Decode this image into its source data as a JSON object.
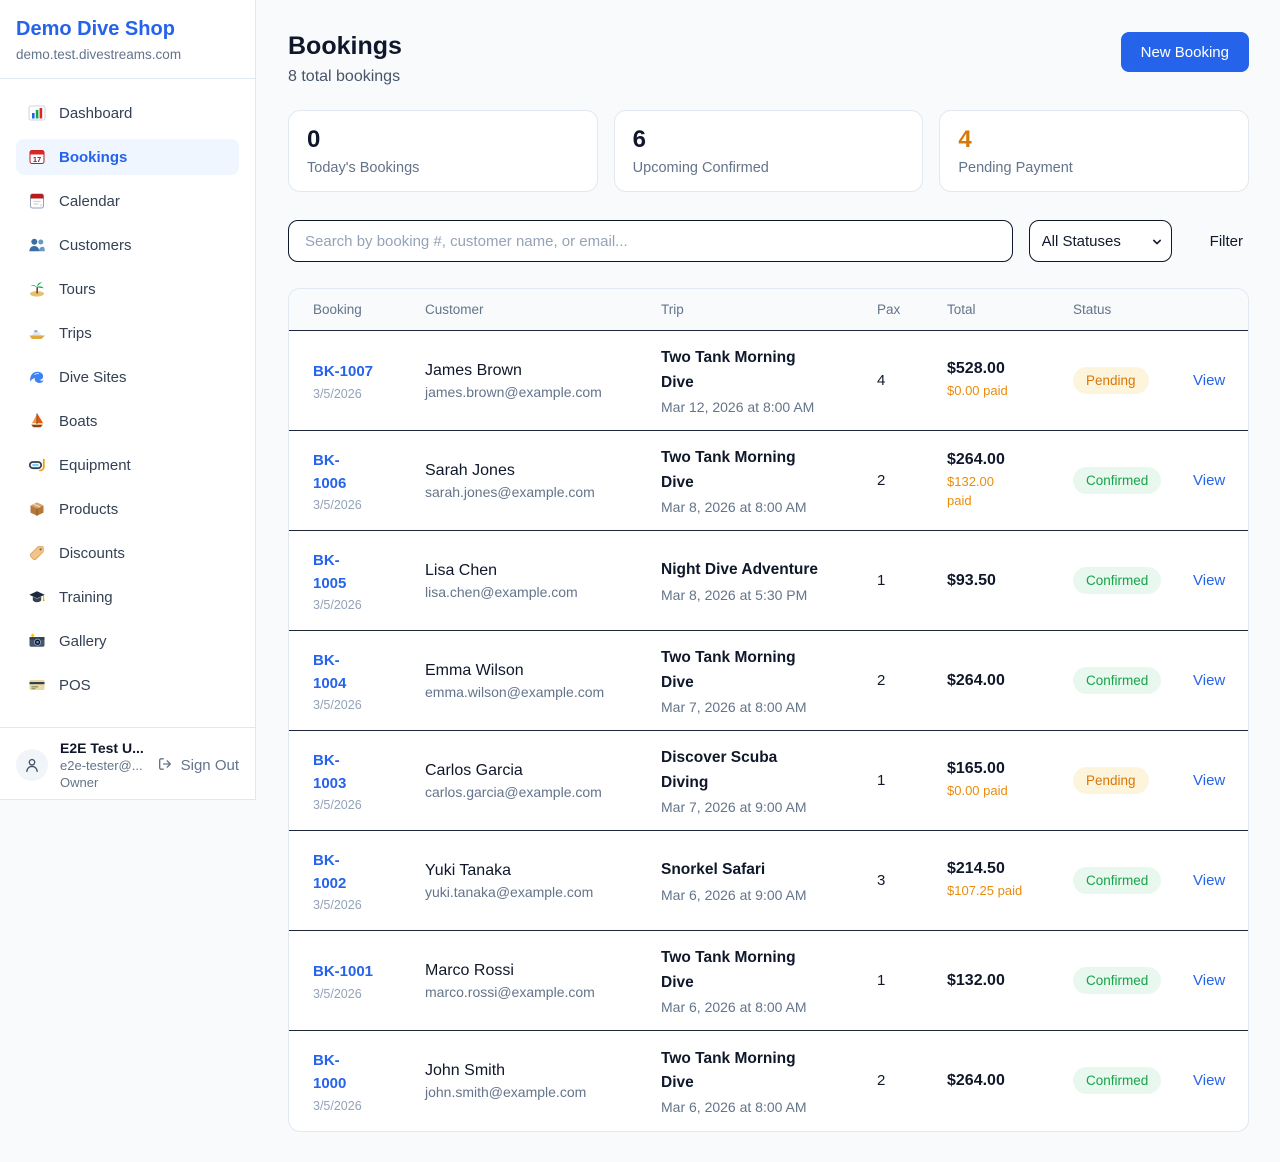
{
  "colors": {
    "accent_blue": "#2563eb",
    "pending_orange": "#d97706",
    "paid_orange": "#ea8c0c",
    "confirmed_green": "#16a34a",
    "dark_text": "#0f172a"
  },
  "sidebar": {
    "shop_name": "Demo Dive Shop",
    "shop_domain": "demo.test.divestreams.com",
    "items": [
      {
        "label": "Dashboard",
        "icon": "bar-chart-icon",
        "active": false
      },
      {
        "label": "Bookings",
        "icon": "calendar-icon",
        "active": true
      },
      {
        "label": "Calendar",
        "icon": "tear-calendar-icon",
        "active": false
      },
      {
        "label": "Customers",
        "icon": "people-icon",
        "active": false
      },
      {
        "label": "Tours",
        "icon": "island-icon",
        "active": false
      },
      {
        "label": "Trips",
        "icon": "motorboat-icon",
        "active": false
      },
      {
        "label": "Dive Sites",
        "icon": "wave-icon",
        "active": false
      },
      {
        "label": "Boats",
        "icon": "sailboat-icon",
        "active": false
      },
      {
        "label": "Equipment",
        "icon": "diving-mask-icon",
        "active": false
      },
      {
        "label": "Products",
        "icon": "package-icon",
        "active": false
      },
      {
        "label": "Discounts",
        "icon": "tag-icon",
        "active": false
      },
      {
        "label": "Training",
        "icon": "graduation-cap-icon",
        "active": false
      },
      {
        "label": "Gallery",
        "icon": "camera-icon",
        "active": false
      },
      {
        "label": "POS",
        "icon": "credit-card-icon",
        "active": false
      }
    ],
    "user": {
      "name": "E2E Test U...",
      "email": "e2e-tester@...",
      "role": "Owner",
      "sign_out_label": "Sign Out"
    }
  },
  "header": {
    "title": "Bookings",
    "subtitle": "8 total bookings",
    "new_booking_label": "New Booking"
  },
  "stats": [
    {
      "value": "0",
      "label": "Today's Bookings",
      "value_color": "#0f172a"
    },
    {
      "value": "6",
      "label": "Upcoming Confirmed",
      "value_color": "#0f172a"
    },
    {
      "value": "4",
      "label": "Pending Payment",
      "value_color": "#d97706"
    }
  ],
  "filters": {
    "search_placeholder": "Search by booking #, customer name, or email...",
    "status_selected": "All Statuses",
    "filter_label": "Filter"
  },
  "table": {
    "columns": [
      "Booking",
      "Customer",
      "Trip",
      "Pax",
      "Total",
      "Status"
    ],
    "view_label": "View",
    "rows": [
      {
        "id": "BK-1007",
        "date": "3/5/2026",
        "customer": "James Brown",
        "email": "james.brown@example.com",
        "trip": "Two Tank Morning\nDive",
        "trip_datetime": "Mar 12, 2026 at 8:00 AM",
        "pax": "4",
        "total": "$528.00",
        "paid": "$0.00 paid",
        "status": "Pending"
      },
      {
        "id": "BK-\n1006",
        "date": "3/5/2026",
        "customer": "Sarah Jones",
        "email": "sarah.jones@example.com",
        "trip": "Two Tank Morning\nDive",
        "trip_datetime": "Mar 8, 2026 at 8:00 AM",
        "pax": "2",
        "total": "$264.00",
        "paid": "$132.00\npaid",
        "status": "Confirmed"
      },
      {
        "id": "BK-\n1005",
        "date": "3/5/2026",
        "customer": "Lisa Chen",
        "email": "lisa.chen@example.com",
        "trip": "Night Dive Adventure",
        "trip_datetime": "Mar 8, 2026 at 5:30 PM",
        "pax": "1",
        "total": "$93.50",
        "paid": "",
        "status": "Confirmed"
      },
      {
        "id": "BK-\n1004",
        "date": "3/5/2026",
        "customer": "Emma Wilson",
        "email": "emma.wilson@example.com",
        "trip": "Two Tank Morning\nDive",
        "trip_datetime": "Mar 7, 2026 at 8:00 AM",
        "pax": "2",
        "total": "$264.00",
        "paid": "",
        "status": "Confirmed"
      },
      {
        "id": "BK-\n1003",
        "date": "3/5/2026",
        "customer": "Carlos Garcia",
        "email": "carlos.garcia@example.com",
        "trip": "Discover Scuba\nDiving",
        "trip_datetime": "Mar 7, 2026 at 9:00 AM",
        "pax": "1",
        "total": "$165.00",
        "paid": "$0.00 paid",
        "status": "Pending"
      },
      {
        "id": "BK-\n1002",
        "date": "3/5/2026",
        "customer": "Yuki Tanaka",
        "email": "yuki.tanaka@example.com",
        "trip": "Snorkel Safari",
        "trip_datetime": "Mar 6, 2026 at 9:00 AM",
        "pax": "3",
        "total": "$214.50",
        "paid": "$107.25 paid",
        "status": "Confirmed"
      },
      {
        "id": "BK-1001",
        "date": "3/5/2026",
        "customer": "Marco Rossi",
        "email": "marco.rossi@example.com",
        "trip": "Two Tank Morning\nDive",
        "trip_datetime": "Mar 6, 2026 at 8:00 AM",
        "pax": "1",
        "total": "$132.00",
        "paid": "",
        "status": "Confirmed"
      },
      {
        "id": "BK-\n1000",
        "date": "3/5/2026",
        "customer": "John Smith",
        "email": "john.smith@example.com",
        "trip": "Two Tank Morning\nDive",
        "trip_datetime": "Mar 6, 2026 at 8:00 AM",
        "pax": "2",
        "total": "$264.00",
        "paid": "",
        "status": "Confirmed"
      }
    ]
  }
}
